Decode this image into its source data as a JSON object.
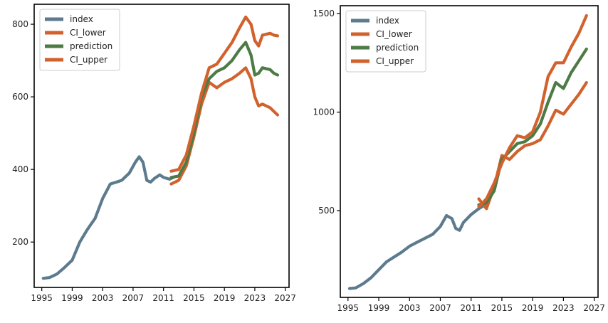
{
  "colors": {
    "index": "#5d7b8e",
    "ci_lower": "#d2622d",
    "prediction": "#4e7a45",
    "ci_upper": "#d2622d",
    "frame": "#000000"
  },
  "chart_data": [
    {
      "type": "line",
      "legend_position": "top-left",
      "grid": false,
      "xlim": [
        1994,
        2027.5
      ],
      "ylim": [
        75,
        855
      ],
      "xticks": [
        1995,
        1999,
        2003,
        2007,
        2011,
        2015,
        2019,
        2023,
        2027
      ],
      "xtick_labels": [
        "1995",
        "1999",
        "2003",
        "2007",
        "2011",
        "2015",
        "2019",
        "2023",
        "2027"
      ],
      "yticks": [
        200,
        400,
        600,
        800
      ],
      "ytick_labels": [
        "200",
        "400",
        "600",
        "800"
      ],
      "series": [
        {
          "name": "index",
          "color_key": "index",
          "x": [
            1995.2,
            1996,
            1997,
            1998,
            1999,
            2000,
            2001,
            2002,
            2003,
            2004,
            2004.8,
            2005.5,
            2006.5,
            2007.3,
            2007.8,
            2008.3,
            2008.8,
            2009.3,
            2009.8,
            2010.5,
            2011,
            2011.8,
            2012.5
          ],
          "y": [
            100,
            102,
            112,
            130,
            150,
            200,
            235,
            265,
            320,
            360,
            365,
            370,
            390,
            420,
            435,
            420,
            370,
            365,
            375,
            385,
            378,
            373,
            380
          ]
        },
        {
          "name": "CI_lower",
          "color_key": "ci_lower",
          "x": [
            2012,
            2013,
            2014,
            2015,
            2016,
            2017,
            2018,
            2019,
            2020,
            2021,
            2021.8,
            2022.5,
            2023,
            2023.5,
            2024,
            2025,
            2025.5,
            2026
          ],
          "y": [
            360,
            370,
            410,
            490,
            580,
            640,
            625,
            640,
            650,
            665,
            680,
            650,
            600,
            575,
            580,
            570,
            560,
            550
          ]
        },
        {
          "name": "prediction",
          "color_key": "prediction",
          "x": [
            2012,
            2013,
            2014,
            2015,
            2016,
            2017,
            2018,
            2019,
            2020,
            2021,
            2021.8,
            2022.5,
            2023,
            2023.5,
            2024,
            2025,
            2025.5,
            2026
          ],
          "y": [
            378,
            382,
            420,
            500,
            600,
            650,
            670,
            680,
            700,
            730,
            750,
            715,
            660,
            665,
            680,
            675,
            665,
            660
          ]
        },
        {
          "name": "CI_upper",
          "color_key": "ci_upper",
          "x": [
            2012,
            2013,
            2014,
            2015,
            2016,
            2017,
            2018,
            2019,
            2020,
            2021,
            2021.8,
            2022.5,
            2023,
            2023.5,
            2024,
            2025,
            2025.5,
            2026
          ],
          "y": [
            395,
            400,
            440,
            520,
            610,
            680,
            690,
            720,
            750,
            790,
            820,
            800,
            755,
            740,
            770,
            775,
            770,
            768
          ]
        }
      ]
    },
    {
      "type": "line",
      "legend_position": "top-left",
      "grid": false,
      "xlim": [
        1994,
        2027.5
      ],
      "ylim": [
        60,
        1540
      ],
      "xticks": [
        1995,
        1999,
        2003,
        2007,
        2011,
        2015,
        2019,
        2023,
        2027
      ],
      "xtick_labels": [
        "1995",
        "1999",
        "2003",
        "2007",
        "2011",
        "2015",
        "2019",
        "2023",
        "2027"
      ],
      "yticks": [
        500,
        1000,
        1500
      ],
      "ytick_labels": [
        "500",
        "1000",
        "1500"
      ],
      "series": [
        {
          "name": "index",
          "color_key": "index",
          "x": [
            1995.2,
            1996,
            1997,
            1998,
            1999,
            2000,
            2001,
            2002,
            2003,
            2004,
            2005,
            2006,
            2007,
            2007.8,
            2008.5,
            2009,
            2009.5,
            2010,
            2011,
            2012,
            2012.8
          ],
          "y": [
            105,
            108,
            130,
            160,
            200,
            240,
            265,
            290,
            320,
            340,
            360,
            380,
            420,
            475,
            460,
            410,
            400,
            440,
            480,
            510,
            530
          ]
        },
        {
          "name": "CI_lower",
          "color_key": "ci_lower",
          "x": [
            2012,
            2013,
            2014,
            2015,
            2016,
            2017,
            2018,
            2019,
            2020,
            2021,
            2022,
            2023,
            2024,
            2025,
            2026
          ],
          "y": [
            560,
            510,
            620,
            780,
            760,
            800,
            830,
            840,
            860,
            930,
            1010,
            990,
            1040,
            1090,
            1150
          ]
        },
        {
          "name": "prediction",
          "color_key": "prediction",
          "x": [
            2012,
            2013,
            2014,
            2015,
            2016,
            2017,
            2018,
            2019,
            2020,
            2021,
            2022,
            2023,
            2024,
            2025,
            2026
          ],
          "y": [
            530,
            540,
            600,
            760,
            800,
            840,
            850,
            880,
            940,
            1050,
            1150,
            1120,
            1200,
            1260,
            1320
          ]
        },
        {
          "name": "CI_upper",
          "color_key": "ci_upper",
          "x": [
            2012,
            2013,
            2014,
            2015,
            2016,
            2017,
            2018,
            2019,
            2020,
            2021,
            2022,
            2023,
            2024,
            2025,
            2026
          ],
          "y": [
            520,
            560,
            640,
            740,
            820,
            880,
            870,
            900,
            1000,
            1180,
            1250,
            1250,
            1330,
            1400,
            1490
          ]
        }
      ]
    }
  ]
}
